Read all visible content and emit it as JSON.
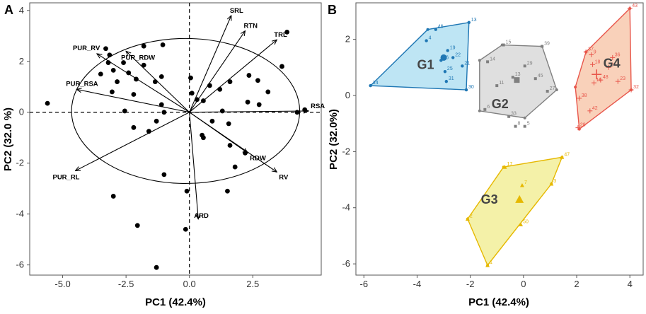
{
  "chart_data": [
    {
      "panel": "A",
      "type": "scatter",
      "subtype": "pca-biplot",
      "xlabel": "PC1 (42.4%)",
      "ylabel": "PC2 (32.0 %)",
      "xlim": [
        -6.3,
        5.2
      ],
      "ylim": [
        -6.4,
        4.3
      ],
      "xticks": [
        -5.0,
        -2.5,
        0.0,
        2.5
      ],
      "yticks": [
        4,
        2,
        0,
        -2,
        -4,
        -6
      ],
      "reference_lines": {
        "x": 0,
        "y": 0,
        "style": "dashed"
      },
      "ellipse": {
        "cx": -0.15,
        "cy": 0.05,
        "rx": 4.5,
        "ry": 2.85
      },
      "points": [
        [
          -5.6,
          0.35
        ],
        [
          -3.3,
          2.5
        ],
        [
          -3.15,
          2.25
        ],
        [
          -3.2,
          1.95
        ],
        [
          -2.6,
          1.95
        ],
        [
          -1.8,
          1.85
        ],
        [
          -1.8,
          2.6
        ],
        [
          -1.05,
          2.65
        ],
        [
          -3.5,
          1.5
        ],
        [
          -3.0,
          1.65
        ],
        [
          -2.4,
          1.55
        ],
        [
          -2.1,
          1.3
        ],
        [
          -2.85,
          1.2
        ],
        [
          -3.05,
          0.8
        ],
        [
          -1.35,
          1.2
        ],
        [
          -1.1,
          1.4
        ],
        [
          -2.2,
          0.7
        ],
        [
          -1.1,
          0.3
        ],
        [
          -2.55,
          0.05
        ],
        [
          -1.0,
          0.0
        ],
        [
          -1.3,
          -0.35
        ],
        [
          -2.2,
          -0.6
        ],
        [
          -1.6,
          -0.75
        ],
        [
          0.05,
          1.35
        ],
        [
          0.1,
          0.75
        ],
        [
          0.3,
          0.5
        ],
        [
          0.55,
          0.45
        ],
        [
          0.8,
          1.05
        ],
        [
          1.2,
          0.9
        ],
        [
          1.6,
          1.2
        ],
        [
          2.35,
          1.45
        ],
        [
          2.7,
          1.25
        ],
        [
          3.1,
          0.8
        ],
        [
          3.85,
          3.15
        ],
        [
          3.65,
          1.8
        ],
        [
          2.75,
          0.3
        ],
        [
          2.3,
          0.4
        ],
        [
          1.3,
          0.05
        ],
        [
          0.9,
          -0.35
        ],
        [
          1.55,
          -0.45
        ],
        [
          0.5,
          -0.9
        ],
        [
          0.55,
          -1.0
        ],
        [
          1.6,
          -1.3
        ],
        [
          2.2,
          -1.6
        ],
        [
          1.8,
          -2.15
        ],
        [
          -1.0,
          -2.45
        ],
        [
          -0.1,
          -3.1
        ],
        [
          1.5,
          -3.1
        ],
        [
          -3.0,
          -3.3
        ],
        [
          -2.05,
          -4.45
        ],
        [
          -0.15,
          -4.6
        ],
        [
          -1.3,
          -6.1
        ],
        [
          4.55,
          0.1
        ],
        [
          4.25,
          0.0
        ]
      ],
      "loadings": [
        {
          "name": "SRL",
          "x": 1.65,
          "y": 3.8
        },
        {
          "name": "RTN",
          "x": 2.2,
          "y": 3.2
        },
        {
          "name": "TRL",
          "x": 3.45,
          "y": 2.85
        },
        {
          "name": "RSA",
          "x": 4.7,
          "y": 0.05
        },
        {
          "name": "RDW",
          "x": 2.3,
          "y": -1.6
        },
        {
          "name": "RV",
          "x": 3.45,
          "y": -2.35
        },
        {
          "name": "ARD",
          "x": 0.35,
          "y": -4.2
        },
        {
          "name": "PUR_RL",
          "x": -4.5,
          "y": -2.3
        },
        {
          "name": "PUR_RSA",
          "x": -4.45,
          "y": 0.9
        },
        {
          "name": "PUR_RV",
          "x": -3.65,
          "y": 2.3
        },
        {
          "name": "PUR_RDW",
          "x": -2.5,
          "y": 2.4
        }
      ]
    },
    {
      "panel": "B",
      "type": "scatter",
      "subtype": "cluster-hulls",
      "xlabel": "PC1 (42.4%)",
      "ylabel": "PC2 (32.0%)",
      "xlim": [
        -6.3,
        4.5
      ],
      "ylim": [
        -6.4,
        3.3
      ],
      "xticks": [
        -6,
        -4,
        -2,
        0,
        2,
        4
      ],
      "yticks": [
        2,
        0,
        -2,
        -4,
        -6
      ],
      "groups": [
        {
          "name": "G1",
          "color": "#1f77b4",
          "fill": "#b3e0f2",
          "label_pos": [
            -4.0,
            0.95
          ],
          "hull": [
            [
              -5.75,
              0.35
            ],
            [
              -3.6,
              2.35
            ],
            [
              -2.05,
              2.6
            ],
            [
              -2.15,
              0.2
            ]
          ],
          "centroid": [
            -3.0,
            1.35
          ],
          "points": [
            {
              "id": "34",
              "x": -5.75,
              "y": 0.35
            },
            {
              "id": "4",
              "x": -3.65,
              "y": 1.95
            },
            {
              "id": "46",
              "x": -3.3,
              "y": 2.35
            },
            {
              "id": "13",
              "x": -2.05,
              "y": 2.6
            },
            {
              "id": "19",
              "x": -2.85,
              "y": 1.6
            },
            {
              "id": "22",
              "x": -2.65,
              "y": 1.35
            },
            {
              "id": "26",
              "x": -3.1,
              "y": 1.25
            },
            {
              "id": "21",
              "x": -2.3,
              "y": 1.05
            },
            {
              "id": "25",
              "x": -2.95,
              "y": 0.85
            },
            {
              "id": "31",
              "x": -2.9,
              "y": 0.5
            },
            {
              "id": "30",
              "x": -2.15,
              "y": 0.2
            }
          ]
        },
        {
          "name": "G2",
          "color": "#808080",
          "fill": "#d9d9d9",
          "label_pos": [
            -1.2,
            -0.45
          ],
          "hull": [
            [
              -1.65,
              1.25
            ],
            [
              -0.8,
              1.8
            ],
            [
              0.7,
              1.75
            ],
            [
              1.25,
              0.2
            ],
            [
              0.05,
              -0.8
            ],
            [
              -1.65,
              -0.55
            ]
          ],
          "centroid": [
            -0.25,
            0.55
          ],
          "points": [
            {
              "id": "15",
              "x": -0.75,
              "y": 1.8
            },
            {
              "id": "39",
              "x": 0.7,
              "y": 1.75
            },
            {
              "id": "14",
              "x": -1.35,
              "y": 1.2
            },
            {
              "id": "29",
              "x": 0.05,
              "y": 1.05
            },
            {
              "id": "45",
              "x": 0.45,
              "y": 0.6
            },
            {
              "id": "13",
              "x": -0.4,
              "y": 0.65
            },
            {
              "id": "27",
              "x": 0.9,
              "y": 0.15
            },
            {
              "id": "11",
              "x": -1.0,
              "y": 0.35
            },
            {
              "id": "6",
              "x": -1.45,
              "y": -0.5
            },
            {
              "id": "33",
              "x": -0.55,
              "y": -0.75
            },
            {
              "id": "8",
              "x": -0.3,
              "y": -1.1
            },
            {
              "id": "5",
              "x": 0.05,
              "y": -1.1
            }
          ]
        },
        {
          "name": "G3",
          "color": "#e6b800",
          "fill": "#f2ef99",
          "label_pos": [
            -1.6,
            -3.85
          ],
          "hull": [
            [
              -2.1,
              -4.4
            ],
            [
              -0.75,
              -2.55
            ],
            [
              1.45,
              -2.2
            ],
            [
              1.05,
              -3.15
            ],
            [
              -1.35,
              -6.05
            ]
          ],
          "centroid": [
            -0.15,
            -3.7
          ],
          "points": [
            {
              "id": "2",
              "x": -2.1,
              "y": -4.4
            },
            {
              "id": "17",
              "x": -0.7,
              "y": -2.55
            },
            {
              "id": "47",
              "x": 1.45,
              "y": -2.2
            },
            {
              "id": "7",
              "x": -0.05,
              "y": -3.2
            },
            {
              "id": "3",
              "x": 1.05,
              "y": -3.15
            },
            {
              "id": "50",
              "x": -0.1,
              "y": -4.6
            },
            {
              "id": "1",
              "x": -1.35,
              "y": -6.05
            }
          ]
        },
        {
          "name": "G4",
          "color": "#e8564b",
          "fill": "#f8c9ae",
          "label_pos": [
            3.0,
            1.0
          ],
          "hull": [
            [
              2.35,
              1.55
            ],
            [
              4.0,
              3.1
            ],
            [
              4.05,
              0.2
            ],
            [
              2.1,
              -1.2
            ],
            [
              1.95,
              0.3
            ]
          ],
          "centroid": [
            2.75,
            0.75
          ],
          "points": [
            {
              "id": "43",
              "x": 4.0,
              "y": 3.1
            },
            {
              "id": "37",
              "x": 2.35,
              "y": 1.55
            },
            {
              "id": "9",
              "x": 2.55,
              "y": 1.45
            },
            {
              "id": "36",
              "x": 3.35,
              "y": 1.35
            },
            {
              "id": "18",
              "x": 2.6,
              "y": 1.1
            },
            {
              "id": "2",
              "x": 3.2,
              "y": 1.0
            },
            {
              "id": "16",
              "x": 2.65,
              "y": 0.45
            },
            {
              "id": "48",
              "x": 2.9,
              "y": 0.55
            },
            {
              "id": "23",
              "x": 3.55,
              "y": 0.5
            },
            {
              "id": "38",
              "x": 2.1,
              "y": -0.1
            },
            {
              "id": "32",
              "x": 4.05,
              "y": 0.2
            },
            {
              "id": "42",
              "x": 2.5,
              "y": -0.55
            },
            {
              "id": "28",
              "x": 2.05,
              "y": -1.15
            }
          ]
        }
      ]
    }
  ],
  "panels": {
    "a_letter": "A",
    "b_letter": "B"
  }
}
